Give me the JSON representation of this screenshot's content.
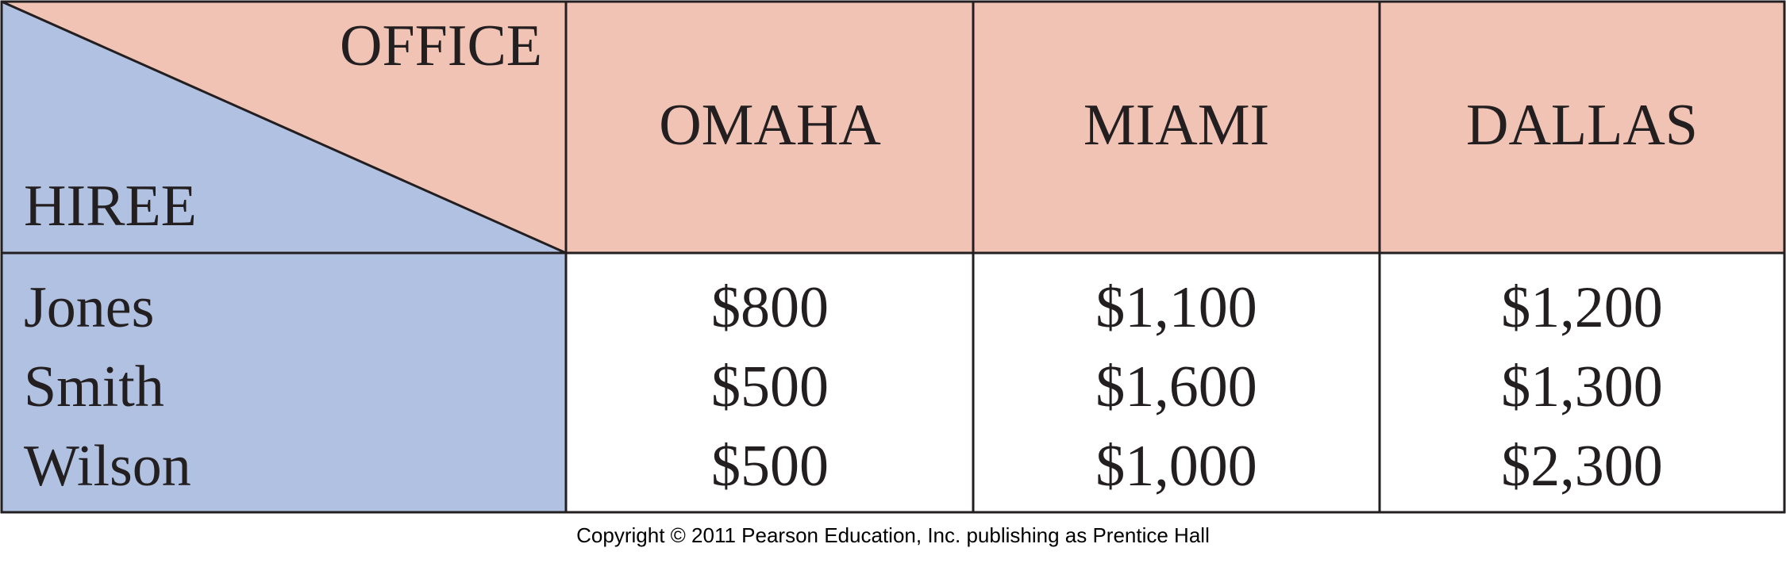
{
  "table": {
    "corner": {
      "top_label": "OFFICE",
      "bottom_label": "HIREE"
    },
    "columns": [
      "OMAHA",
      "MIAMI",
      "DALLAS"
    ],
    "rows": [
      {
        "name": "Jones",
        "values": [
          "$800",
          "$1,100",
          "$1,200"
        ]
      },
      {
        "name": "Smith",
        "values": [
          "$500",
          "$1,600",
          "$1,300"
        ]
      },
      {
        "name": "Wilson",
        "values": [
          "$500",
          "$1,000",
          "$2,300"
        ]
      }
    ]
  },
  "colors": {
    "header_fill": "#F1C3B5",
    "row_label_fill": "#B0C1E1",
    "body_fill": "#FFFFFF",
    "grid_line": "#231F20",
    "text": "#231F20"
  },
  "footer": {
    "copyright": "Copyright © 2011 Pearson Education, Inc. publishing as Prentice Hall"
  }
}
